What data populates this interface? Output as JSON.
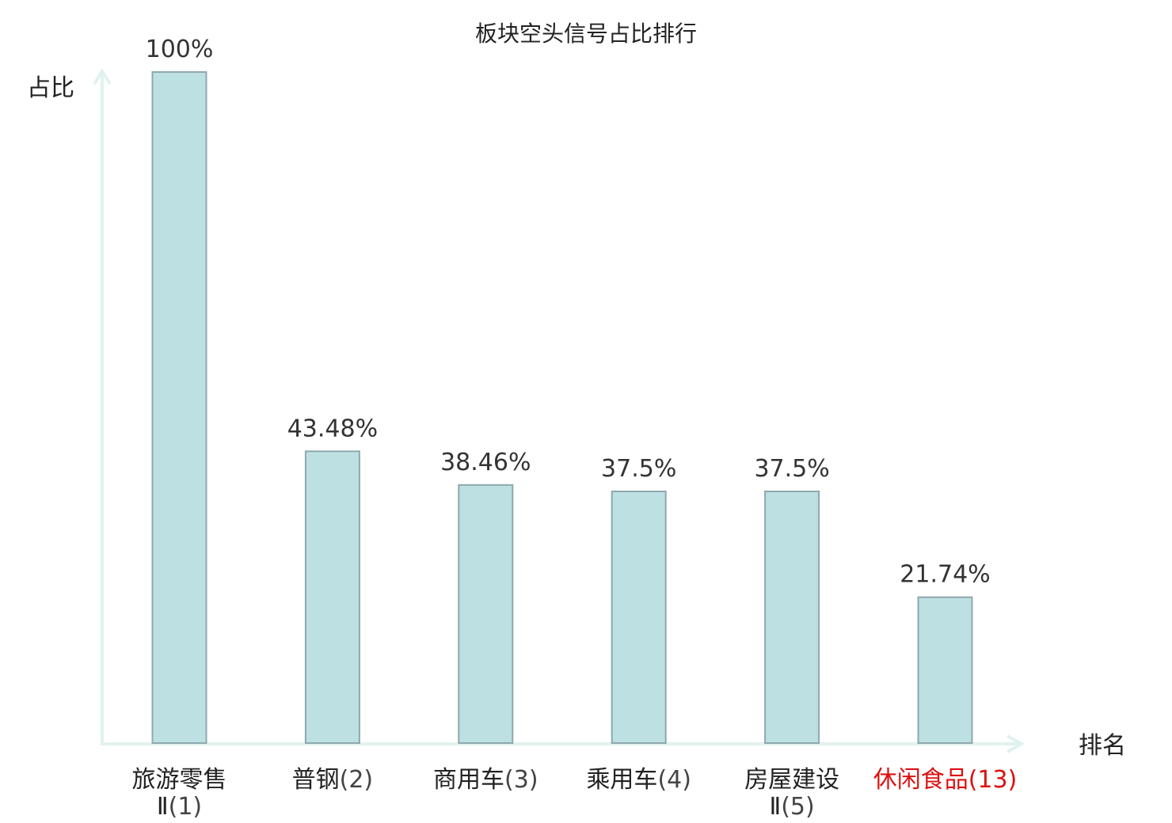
{
  "chart_data": {
    "type": "bar",
    "title": "板块空头信号占比排行",
    "ylabel": "占比",
    "xlabel": "排名",
    "ylim": [
      0,
      100
    ],
    "grid": false,
    "categories": [
      {
        "name_lines": [
          "旅游零售",
          "Ⅱ"
        ],
        "rank": "(1)",
        "highlight": false
      },
      {
        "name_lines": [
          "普钢"
        ],
        "rank": "(2)",
        "highlight": false
      },
      {
        "name_lines": [
          "商用车"
        ],
        "rank": "(3)",
        "highlight": false
      },
      {
        "name_lines": [
          "乘用车"
        ],
        "rank": "(4)",
        "highlight": false
      },
      {
        "name_lines": [
          "房屋建设",
          "Ⅱ"
        ],
        "rank": "(5)",
        "highlight": false
      },
      {
        "name_lines": [
          "休闲食品"
        ],
        "rank": "(13)",
        "highlight": true
      }
    ],
    "values": [
      100,
      43.48,
      38.46,
      37.5,
      37.5,
      21.74
    ],
    "value_labels": [
      "100%",
      "43.48%",
      "38.46%",
      "37.5%",
      "37.5%",
      "21.74%"
    ]
  },
  "colors": {
    "bar_fill": "#bde0e3",
    "bar_stroke": "#8fa9ad",
    "axis": "#e0f2ef",
    "highlight": "#dd1111"
  }
}
